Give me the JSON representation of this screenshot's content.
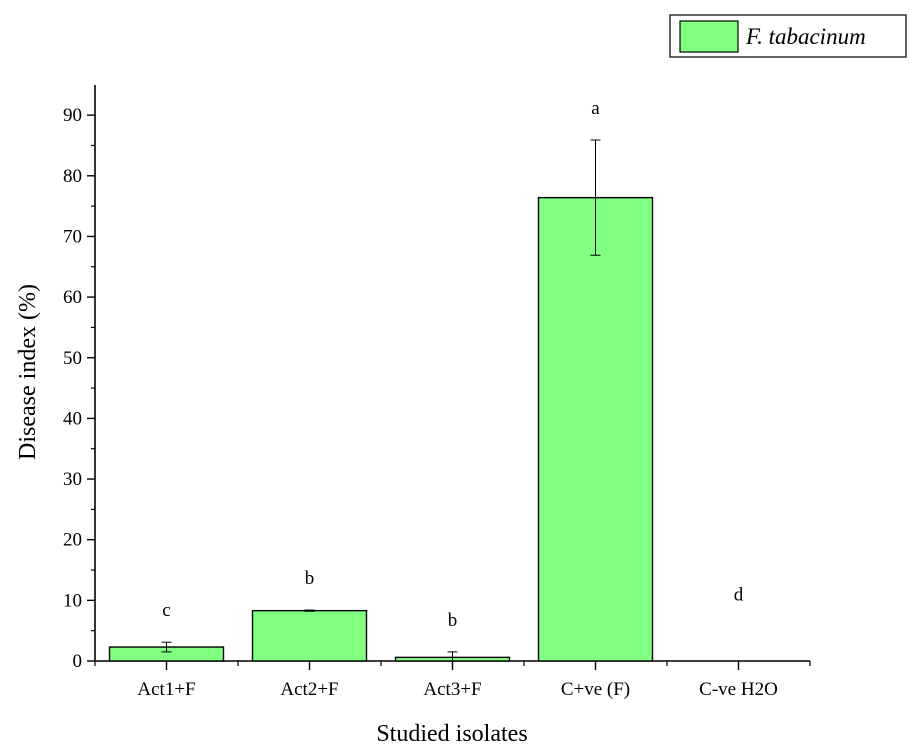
{
  "chart_data": {
    "type": "bar",
    "title": "",
    "xlabel": "Studied isolates",
    "ylabel": "Disease index (%)",
    "ylim": [
      0,
      95
    ],
    "yticks": [
      0,
      10,
      20,
      30,
      40,
      50,
      60,
      70,
      80,
      90
    ],
    "grid": false,
    "legend_position": "top-right",
    "categories": [
      "Act1+F",
      "Act2+F",
      "Act3+F",
      "C+ve (F)",
      "C-ve H2O"
    ],
    "series": [
      {
        "name": "F. tabacinum",
        "color": "#80ff80",
        "values": [
          2.3,
          8.3,
          0.6,
          76.4,
          0
        ],
        "errors": [
          0.8,
          0.1,
          0.9,
          9.5,
          0
        ]
      }
    ],
    "significance_letters": [
      "c",
      "b",
      "b",
      "a",
      "d"
    ]
  }
}
